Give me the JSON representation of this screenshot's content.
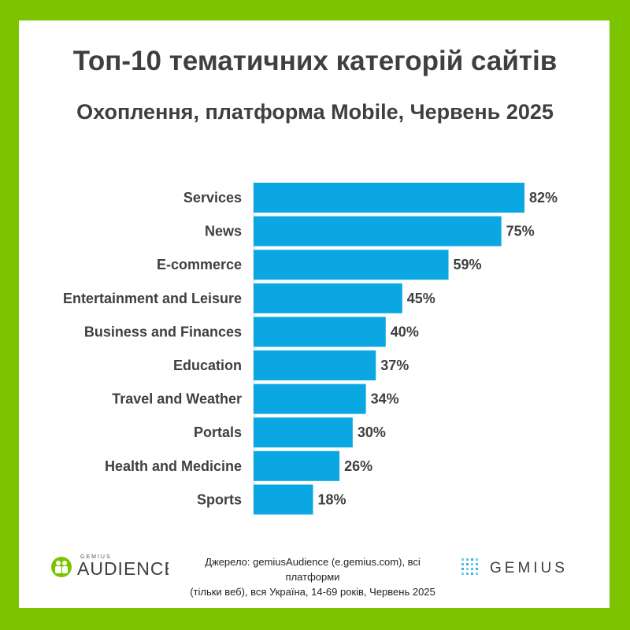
{
  "header": {
    "title": "Топ-10 тематичних категорій сайтів",
    "subtitle": "Охоплення, платформа Mobile, Червень 2025"
  },
  "chart_data": {
    "type": "bar",
    "orientation": "horizontal",
    "categories": [
      "Services",
      "News",
      "E-commerce",
      "Entertainment and Leisure",
      "Business and Finances",
      "Education",
      "Travel and Weather",
      "Portals",
      "Health and Medicine",
      "Sports"
    ],
    "values": [
      82,
      75,
      59,
      45,
      40,
      37,
      34,
      30,
      26,
      18
    ],
    "value_labels": [
      "82%",
      "75%",
      "59%",
      "45%",
      "40%",
      "37%",
      "34%",
      "30%",
      "26%",
      "18%"
    ],
    "xlim": [
      0,
      100
    ],
    "grid": false,
    "bar_color": "#0aa7e2"
  },
  "footer": {
    "source_line1": "Джерело: gemiusAudience (e.gemius.com), всі платформи",
    "source_line2": "(тільки веб), вся Україна, 14-69 років, Червень 2025",
    "logo_left_small": "GEMIUS",
    "logo_left_main": "AUDIENCE",
    "logo_right": "GEMIUS"
  },
  "colors": {
    "frame": "#7cc400",
    "text": "#3f3f3f",
    "accent_green": "#7cc400",
    "logo_blue": "#0aa7e2"
  }
}
